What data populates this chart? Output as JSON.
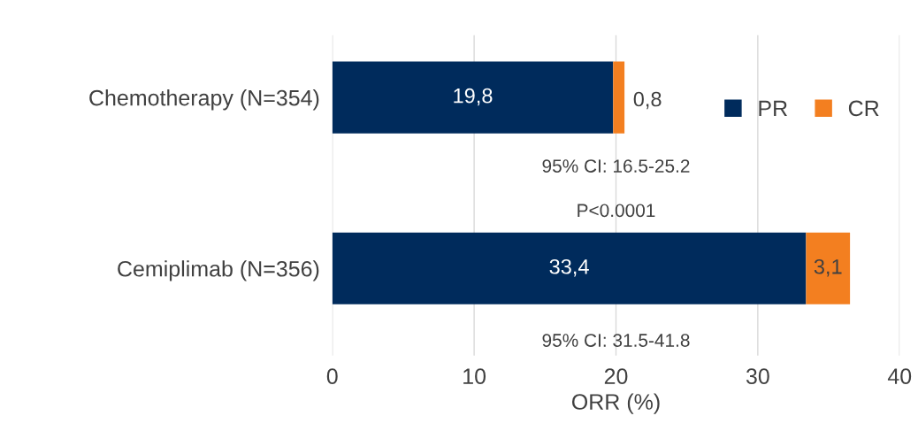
{
  "chart_data": {
    "type": "bar",
    "orientation": "horizontal",
    "stacked": true,
    "categories": [
      "Chemotherapy (N=354)",
      "Cemiplimab (N=356)"
    ],
    "series": [
      {
        "name": "PR",
        "color": "#002b5c",
        "values": [
          19.8,
          33.4
        ],
        "value_labels": [
          "19,8",
          "33,4"
        ]
      },
      {
        "name": "CR",
        "color": "#f37f20",
        "values": [
          0.8,
          3.1
        ],
        "value_labels": [
          "0,8",
          "3,1"
        ]
      }
    ],
    "xlabel": "ORR (%)",
    "xlim": [
      0,
      40
    ],
    "xticks": [
      0,
      10,
      20,
      30,
      40
    ],
    "grid": "x",
    "legend": "top right",
    "annotations": [
      "95% CI: 16.5-25.2",
      "P<0.0001",
      "95% CI: 31.5-41.8"
    ]
  }
}
